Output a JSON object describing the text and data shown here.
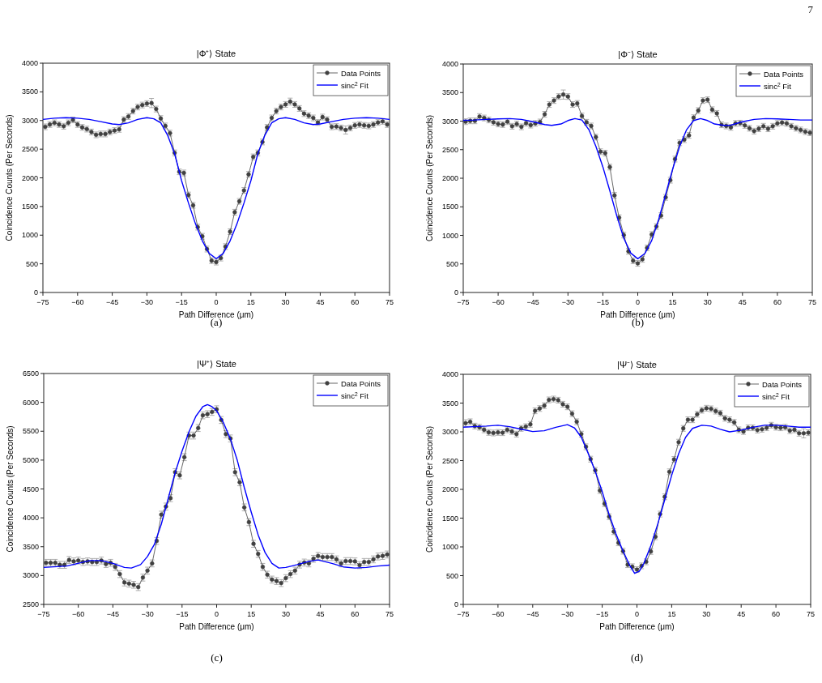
{
  "chart_data": [
    {
      "type": "line",
      "title": "|Φ⁺⟩ State",
      "xlabel": "Path Difference (μm)",
      "ylabel": "Coincidence Counts (Per Seconds)",
      "annotations": [
        "(a)",
        "7"
      ],
      "legend": "top right",
      "marker": "circle",
      "xlim": [
        -75,
        75
      ],
      "xticks": [
        -75,
        -60,
        -45,
        -30,
        -15,
        0,
        15,
        30,
        45,
        60,
        75
      ],
      "ylim": [
        0,
        4000
      ],
      "yticks": [
        0,
        500,
        1000,
        1500,
        2000,
        2500,
        3000,
        3500,
        4000
      ],
      "x": [
        -74,
        -72,
        -70,
        -68,
        -66,
        -64,
        -62,
        -60,
        -58,
        -56,
        -54,
        -52,
        -50,
        -48,
        -46,
        -44,
        -42,
        -40,
        -38,
        -36,
        -34,
        -32,
        -30,
        -28,
        -26,
        -24,
        -22,
        -20,
        -18,
        -16,
        -14,
        -12,
        -10,
        -8,
        -6,
        -4,
        -2,
        0,
        2,
        4,
        6,
        8,
        10,
        12,
        14,
        16,
        18,
        20,
        22,
        24,
        26,
        28,
        30,
        32,
        34,
        36,
        38,
        40,
        42,
        44,
        46,
        48,
        50,
        52,
        54,
        56,
        58,
        60,
        62,
        64,
        66,
        68,
        70,
        72,
        74
      ],
      "series": [
        {
          "name": "Data Points",
          "color": "#404040",
          "values": [
            2890,
            2930,
            2960,
            2930,
            2900,
            2960,
            3010,
            2930,
            2880,
            2850,
            2800,
            2750,
            2765,
            2765,
            2800,
            2825,
            2845,
            3015,
            3070,
            3165,
            3235,
            3270,
            3295,
            3305,
            3200,
            3035,
            2905,
            2780,
            2435,
            2105,
            2085,
            1700,
            1520,
            1140,
            980,
            757,
            555,
            530,
            600,
            800,
            1060,
            1400,
            1590,
            1780,
            2060,
            2365,
            2435,
            2625,
            2880,
            3045,
            3165,
            3235,
            3280,
            3330,
            3280,
            3210,
            3120,
            3085,
            3045,
            2965,
            3060,
            3015,
            2890,
            2895,
            2870,
            2835,
            2870,
            2915,
            2930,
            2915,
            2905,
            2930,
            2965,
            2985,
            2930
          ],
          "errors": [
            50,
            50,
            50,
            50,
            50,
            50,
            50,
            50,
            50,
            50,
            50,
            50,
            50,
            50,
            50,
            50,
            50,
            50,
            50,
            50,
            50,
            50,
            50,
            80,
            50,
            50,
            50,
            50,
            50,
            50,
            50,
            50,
            50,
            50,
            50,
            50,
            50,
            50,
            50,
            50,
            50,
            50,
            50,
            50,
            50,
            50,
            50,
            50,
            50,
            50,
            50,
            50,
            50,
            60,
            50,
            50,
            50,
            50,
            50,
            50,
            50,
            50,
            50,
            50,
            50,
            70,
            50,
            50,
            50,
            50,
            50,
            50,
            50,
            50,
            50
          ]
        },
        {
          "name": "sinc$^{2}$ Fit",
          "color": "#0000ff",
          "marker": "none",
          "x": [
            -75,
            -70,
            -65,
            -60,
            -55,
            -50,
            -45,
            -42,
            -38,
            -34,
            -30,
            -27,
            -24,
            -21,
            -18,
            -15,
            -12,
            -9,
            -6,
            -3,
            0,
            3,
            6,
            9,
            12,
            15,
            18,
            21,
            24,
            27,
            30,
            34,
            38,
            42,
            45,
            50,
            55,
            60,
            65,
            70,
            75
          ],
          "values": [
            3020,
            3040,
            3050,
            3040,
            3020,
            2980,
            2940,
            2930,
            2960,
            3020,
            3050,
            3030,
            2960,
            2740,
            2420,
            1950,
            1560,
            1200,
            900,
            680,
            590,
            680,
            900,
            1200,
            1560,
            1950,
            2420,
            2740,
            2960,
            3030,
            3050,
            3020,
            2960,
            2930,
            2940,
            2980,
            3020,
            3040,
            3050,
            3040,
            3020
          ]
        }
      ]
    },
    {
      "type": "line",
      "title": "|Φ⁻⟩ State",
      "xlabel": "Path Difference (μm)",
      "ylabel": "Coincidence Counts (Per Seconds)",
      "annotations": [
        "(b)"
      ],
      "legend": "top right",
      "marker": "circle",
      "xlim": [
        -75,
        75
      ],
      "xticks": [
        -75,
        -60,
        -45,
        -30,
        -15,
        0,
        15,
        30,
        45,
        60,
        75
      ],
      "ylim": [
        0,
        4000
      ],
      "yticks": [
        0,
        500,
        1000,
        1500,
        2000,
        2500,
        3000,
        3500,
        4000
      ],
      "x": [
        -74,
        -72,
        -70,
        -68,
        -66,
        -64,
        -62,
        -60,
        -58,
        -56,
        -54,
        -52,
        -50,
        -48,
        -46,
        -44,
        -42,
        -40,
        -38,
        -36,
        -34,
        -32,
        -30,
        -28,
        -26,
        -24,
        -22,
        -20,
        -18,
        -16,
        -14,
        -12,
        -10,
        -8,
        -6,
        -4,
        -2,
        0,
        2,
        4,
        6,
        8,
        10,
        12,
        14,
        16,
        18,
        20,
        22,
        24,
        26,
        28,
        30,
        32,
        34,
        36,
        38,
        40,
        42,
        44,
        46,
        48,
        50,
        52,
        54,
        56,
        58,
        60,
        62,
        64,
        66,
        68,
        70,
        72,
        74
      ],
      "series": [
        {
          "name": "Data Points",
          "color": "#404040",
          "values": [
            2990,
            3005,
            3005,
            3080,
            3055,
            3020,
            2980,
            2950,
            2940,
            2990,
            2910,
            2950,
            2900,
            2965,
            2930,
            2960,
            2985,
            3120,
            3290,
            3360,
            3430,
            3465,
            3430,
            3290,
            3310,
            3090,
            2980,
            2915,
            2720,
            2465,
            2440,
            2195,
            1700,
            1310,
            1005,
            720,
            555,
            510,
            580,
            780,
            1015,
            1155,
            1345,
            1665,
            1965,
            2335,
            2620,
            2675,
            2750,
            3060,
            3185,
            3360,
            3375,
            3200,
            3135,
            2935,
            2915,
            2890,
            2960,
            2965,
            2925,
            2875,
            2825,
            2865,
            2910,
            2865,
            2910,
            2960,
            2975,
            2960,
            2910,
            2875,
            2845,
            2815,
            2795
          ],
          "errors": [
            50,
            50,
            50,
            50,
            50,
            50,
            50,
            50,
            50,
            50,
            50,
            50,
            50,
            50,
            50,
            50,
            50,
            50,
            50,
            50,
            50,
            80,
            50,
            50,
            50,
            50,
            50,
            50,
            50,
            50,
            50,
            50,
            50,
            50,
            50,
            50,
            50,
            50,
            50,
            50,
            50,
            50,
            50,
            50,
            50,
            50,
            50,
            50,
            50,
            50,
            50,
            50,
            50,
            50,
            50,
            50,
            50,
            50,
            50,
            50,
            50,
            50,
            50,
            50,
            50,
            50,
            50,
            50,
            50,
            50,
            50,
            50,
            50,
            50,
            50
          ]
        },
        {
          "name": "sinc$^{2}$ Fit",
          "color": "#0000ff",
          "marker": "none",
          "x": [
            -75,
            -70,
            -65,
            -60,
            -55,
            -50,
            -45,
            -40,
            -37,
            -33,
            -30,
            -27,
            -24,
            -21,
            -18,
            -15,
            -12,
            -9,
            -6,
            -3,
            0,
            3,
            6,
            9,
            12,
            15,
            18,
            21,
            24,
            27,
            30,
            33,
            37,
            40,
            45,
            50,
            55,
            60,
            65,
            70,
            75
          ],
          "values": [
            3015,
            3020,
            3030,
            3040,
            3045,
            3030,
            2990,
            2940,
            2925,
            2950,
            3010,
            3045,
            3020,
            2850,
            2560,
            2200,
            1780,
            1340,
            950,
            690,
            590,
            680,
            910,
            1280,
            1720,
            2160,
            2560,
            2850,
            3010,
            3045,
            3010,
            2950,
            2925,
            2930,
            2990,
            3030,
            3045,
            3040,
            3030,
            3020,
            3020
          ]
        }
      ]
    },
    {
      "type": "line",
      "title": "|Ψ⁺⟩ State",
      "xlabel": "Path Difference (μm)",
      "ylabel": "Coincidence Counts (Per Seconds)",
      "annotations": [
        "(c)"
      ],
      "legend": "top right",
      "marker": "circle",
      "xlim": [
        -75,
        75
      ],
      "xticks": [
        -75,
        -60,
        -45,
        -30,
        -15,
        0,
        15,
        30,
        45,
        60,
        75
      ],
      "ylim": [
        2500,
        6500
      ],
      "yticks": [
        2500,
        3000,
        3500,
        4000,
        4500,
        5000,
        5500,
        6000,
        6500
      ],
      "x": [
        -74,
        -72,
        -70,
        -68,
        -66,
        -64,
        -62,
        -60,
        -58,
        -56,
        -54,
        -52,
        -50,
        -48,
        -46,
        -44,
        -42,
        -40,
        -38,
        -36,
        -34,
        -32,
        -30,
        -28,
        -26,
        -24,
        -22,
        -20,
        -18,
        -16,
        -14,
        -12,
        -10,
        -8,
        -6,
        -4,
        -2,
        0,
        2,
        4,
        6,
        8,
        10,
        12,
        14,
        16,
        18,
        20,
        22,
        24,
        26,
        28,
        30,
        32,
        34,
        36,
        38,
        40,
        42,
        44,
        46,
        48,
        50,
        52,
        54,
        56,
        58,
        60,
        62,
        64,
        66,
        68,
        70,
        72,
        74
      ],
      "series": [
        {
          "name": "Data Points",
          "color": "#404040",
          "values": [
            3220,
            3220,
            3220,
            3185,
            3185,
            3270,
            3245,
            3260,
            3235,
            3245,
            3235,
            3235,
            3260,
            3200,
            3220,
            3150,
            3025,
            2880,
            2860,
            2840,
            2800,
            2965,
            3085,
            3210,
            3600,
            4055,
            4195,
            4340,
            4790,
            4735,
            5050,
            5425,
            5425,
            5555,
            5775,
            5795,
            5835,
            5880,
            5695,
            5450,
            5375,
            4790,
            4615,
            4180,
            3925,
            3550,
            3375,
            3150,
            3015,
            2930,
            2905,
            2870,
            2955,
            3025,
            3085,
            3190,
            3225,
            3210,
            3290,
            3340,
            3320,
            3320,
            3320,
            3280,
            3210,
            3250,
            3250,
            3245,
            3180,
            3235,
            3235,
            3280,
            3330,
            3340,
            3365
          ],
          "errors": [
            60,
            60,
            60,
            60,
            60,
            60,
            60,
            60,
            60,
            60,
            60,
            60,
            60,
            60,
            60,
            60,
            60,
            60,
            60,
            60,
            60,
            60,
            60,
            60,
            60,
            60,
            60,
            60,
            60,
            60,
            60,
            60,
            60,
            60,
            60,
            60,
            60,
            60,
            60,
            60,
            60,
            60,
            60,
            60,
            60,
            60,
            60,
            60,
            60,
            60,
            60,
            60,
            60,
            60,
            60,
            60,
            60,
            60,
            60,
            60,
            60,
            60,
            60,
            60,
            60,
            60,
            60,
            60,
            60,
            60,
            60,
            60,
            60,
            60,
            60
          ]
        },
        {
          "name": "sinc$^{2}$ Fit",
          "color": "#0000ff",
          "marker": "none",
          "x": [
            -75,
            -65,
            -55,
            -50,
            -45,
            -40,
            -37,
            -33,
            -30,
            -27,
            -24,
            -21,
            -18,
            -15,
            -12,
            -9,
            -6,
            -4,
            -2,
            0,
            3,
            6,
            9,
            12,
            15,
            18,
            21,
            24,
            27,
            30,
            35,
            40,
            44,
            50,
            55,
            60,
            65,
            70,
            75
          ],
          "values": [
            3140,
            3165,
            3260,
            3260,
            3210,
            3140,
            3130,
            3190,
            3330,
            3540,
            3890,
            4335,
            4780,
            5155,
            5490,
            5760,
            5925,
            5960,
            5925,
            5855,
            5645,
            5365,
            4990,
            4525,
            4100,
            3705,
            3400,
            3210,
            3130,
            3140,
            3190,
            3245,
            3270,
            3210,
            3150,
            3130,
            3140,
            3165,
            3180
          ]
        }
      ]
    },
    {
      "type": "line",
      "title": "|Ψ⁻⟩ State",
      "xlabel": "Path Difference (μm)",
      "ylabel": "Coincidence Counts (Per Seconds)",
      "annotations": [
        "(d)"
      ],
      "legend": "top right",
      "marker": "circle",
      "xlim": [
        -75,
        75
      ],
      "xticks": [
        -75,
        -60,
        -45,
        -30,
        -15,
        0,
        15,
        30,
        45,
        60,
        75
      ],
      "ylim": [
        0,
        4000
      ],
      "yticks": [
        0,
        500,
        1000,
        1500,
        2000,
        2500,
        3000,
        3500,
        4000
      ],
      "x": [
        -74,
        -72,
        -70,
        -68,
        -66,
        -64,
        -62,
        -60,
        -58,
        -56,
        -54,
        -52,
        -50,
        -48,
        -46,
        -44,
        -42,
        -40,
        -38,
        -36,
        -34,
        -32,
        -30,
        -28,
        -26,
        -24,
        -22,
        -20,
        -18,
        -16,
        -14,
        -12,
        -10,
        -8,
        -6,
        -4,
        -2,
        0,
        2,
        4,
        6,
        8,
        10,
        12,
        14,
        16,
        18,
        20,
        22,
        24,
        26,
        28,
        30,
        32,
        34,
        36,
        38,
        40,
        42,
        44,
        46,
        48,
        50,
        52,
        54,
        56,
        58,
        60,
        62,
        64,
        66,
        68,
        70,
        72,
        74
      ],
      "series": [
        {
          "name": "Data Points",
          "color": "#404040",
          "values": [
            3150,
            3175,
            3100,
            3080,
            3035,
            2990,
            2980,
            2990,
            2985,
            3035,
            3005,
            2960,
            3060,
            3090,
            3130,
            3365,
            3405,
            3455,
            3555,
            3570,
            3550,
            3480,
            3435,
            3315,
            3175,
            2960,
            2740,
            2525,
            2330,
            1980,
            1750,
            1525,
            1265,
            1070,
            925,
            690,
            655,
            605,
            670,
            740,
            920,
            1175,
            1570,
            1870,
            2305,
            2520,
            2820,
            3060,
            3210,
            3210,
            3305,
            3375,
            3410,
            3400,
            3360,
            3325,
            3235,
            3210,
            3165,
            3035,
            3005,
            3070,
            3070,
            3030,
            3045,
            3070,
            3115,
            3080,
            3070,
            3080,
            3020,
            3035,
            2975,
            2975,
            2985
          ],
          "errors": [
            60,
            50,
            50,
            50,
            50,
            50,
            50,
            50,
            50,
            50,
            50,
            50,
            50,
            50,
            50,
            50,
            50,
            50,
            50,
            50,
            50,
            50,
            50,
            50,
            50,
            50,
            50,
            50,
            50,
            50,
            50,
            50,
            50,
            50,
            50,
            50,
            50,
            50,
            50,
            50,
            50,
            50,
            50,
            50,
            50,
            50,
            50,
            50,
            50,
            50,
            50,
            50,
            50,
            50,
            50,
            50,
            50,
            50,
            50,
            50,
            50,
            50,
            50,
            50,
            50,
            50,
            50,
            50,
            50,
            50,
            50,
            50,
            50,
            80,
            50
          ]
        },
        {
          "name": "sinc$^{2}$ Fit",
          "color": "#0000ff",
          "marker": "none",
          "x": [
            -75,
            -65,
            -60,
            -55,
            -50,
            -45,
            -40,
            -35,
            -30,
            -27,
            -24,
            -21,
            -18,
            -15,
            -12,
            -9,
            -6,
            -3,
            -1,
            1,
            3,
            6,
            9,
            12,
            15,
            18,
            21,
            24,
            28,
            32,
            36,
            40,
            45,
            50,
            55,
            60,
            65,
            70,
            75
          ],
          "values": [
            3080,
            3100,
            3115,
            3090,
            3045,
            3005,
            3020,
            3080,
            3125,
            3070,
            2905,
            2620,
            2315,
            1960,
            1560,
            1220,
            925,
            670,
            540,
            575,
            715,
            1020,
            1400,
            1820,
            2245,
            2620,
            2905,
            3060,
            3115,
            3100,
            3045,
            3000,
            3030,
            3080,
            3115,
            3115,
            3100,
            3080,
            3080
          ]
        }
      ]
    }
  ]
}
